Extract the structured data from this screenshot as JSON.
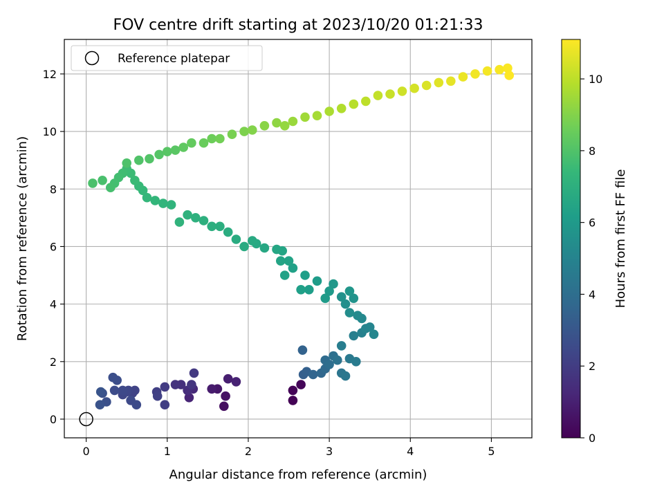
{
  "chart_data": {
    "type": "scatter",
    "title": "FOV centre drift starting at 2023/10/20 01:21:33",
    "xlabel": "Angular distance from reference (arcmin)",
    "ylabel": "Rotation from reference (arcmin)",
    "xlim": [
      -0.27,
      5.5
    ],
    "ylim": [
      -0.65,
      13.2
    ],
    "xticks": [
      0,
      1,
      2,
      3,
      4,
      5
    ],
    "yticks": [
      0,
      2,
      4,
      6,
      8,
      10,
      12
    ],
    "grid": true,
    "legend": {
      "placement": "top-left",
      "entries": [
        "Reference platepar"
      ]
    },
    "reference_point": {
      "x": 0,
      "y": 0,
      "marker": "open-circle",
      "color": "#000000"
    },
    "colorbar": {
      "label": "Hours from first FF file",
      "range": [
        0,
        11.1
      ],
      "ticks": [
        0,
        2,
        4,
        6,
        8,
        10
      ],
      "colormap": "viridis",
      "stops": [
        "#440154",
        "#482878",
        "#3e4989",
        "#31688e",
        "#26828e",
        "#1f9e89",
        "#35b779",
        "#6ece58",
        "#b5de2b",
        "#fde725"
      ]
    },
    "series": [
      {
        "points": [
          [
            2.55,
            0.65,
            0.05
          ],
          [
            2.55,
            1.0,
            0.1
          ],
          [
            2.65,
            1.2,
            0.15
          ],
          [
            1.7,
            0.45,
            0.4
          ],
          [
            1.72,
            0.8,
            0.55
          ],
          [
            1.62,
            1.05,
            0.7
          ],
          [
            1.55,
            1.05,
            0.85
          ],
          [
            1.75,
            1.4,
            0.95
          ],
          [
            1.85,
            1.3,
            1.05
          ],
          [
            1.27,
            0.75,
            1.15
          ],
          [
            1.32,
            1.05,
            1.3
          ],
          [
            1.25,
            1.0,
            1.45
          ],
          [
            1.17,
            1.2,
            1.55
          ],
          [
            1.1,
            1.2,
            1.65
          ],
          [
            1.3,
            1.2,
            1.75
          ],
          [
            1.33,
            1.6,
            1.85
          ],
          [
            0.97,
            1.12,
            1.95
          ],
          [
            0.97,
            0.5,
            2.05
          ],
          [
            0.87,
            0.95,
            2.1
          ],
          [
            0.88,
            0.8,
            2.15
          ],
          [
            0.57,
            0.9,
            2.2
          ],
          [
            0.6,
            1.0,
            2.25
          ],
          [
            0.52,
            1.0,
            2.3
          ],
          [
            0.45,
            0.85,
            2.35
          ],
          [
            0.5,
            0.95,
            2.4
          ],
          [
            0.45,
            1.0,
            2.45
          ],
          [
            0.55,
            0.65,
            2.5
          ],
          [
            0.62,
            0.5,
            2.55
          ],
          [
            0.35,
            1.0,
            2.6
          ],
          [
            0.38,
            1.35,
            2.65
          ],
          [
            0.33,
            1.45,
            2.7
          ],
          [
            0.25,
            0.6,
            2.75
          ],
          [
            0.2,
            0.9,
            2.8
          ],
          [
            0.17,
            0.5,
            2.85
          ],
          [
            0.18,
            0.95,
            2.9
          ],
          [
            2.68,
            1.55,
            3.3
          ],
          [
            2.72,
            1.65,
            3.4
          ],
          [
            2.67,
            2.4,
            3.5
          ],
          [
            2.8,
            1.55,
            3.6
          ],
          [
            2.9,
            1.6,
            3.7
          ],
          [
            2.95,
            1.75,
            3.8
          ],
          [
            2.95,
            2.05,
            3.9
          ],
          [
            3.0,
            1.9,
            4.0
          ],
          [
            3.05,
            2.2,
            4.1
          ],
          [
            3.1,
            2.05,
            4.2
          ],
          [
            3.15,
            1.6,
            4.3
          ],
          [
            3.2,
            1.5,
            4.4
          ],
          [
            3.25,
            2.1,
            4.5
          ],
          [
            3.33,
            2.0,
            4.6
          ],
          [
            3.15,
            2.55,
            4.7
          ],
          [
            3.3,
            2.9,
            4.8
          ],
          [
            3.4,
            3.0,
            4.9
          ],
          [
            3.45,
            3.15,
            5.0
          ],
          [
            3.5,
            3.2,
            5.05
          ],
          [
            3.55,
            2.95,
            5.1
          ],
          [
            3.4,
            3.5,
            5.2
          ],
          [
            3.35,
            3.6,
            5.3
          ],
          [
            3.25,
            3.7,
            5.4
          ],
          [
            3.2,
            4.0,
            5.5
          ],
          [
            3.15,
            4.25,
            5.6
          ],
          [
            3.3,
            4.2,
            5.7
          ],
          [
            3.25,
            4.45,
            5.8
          ],
          [
            3.05,
            4.7,
            5.9
          ],
          [
            3.0,
            4.45,
            6.0
          ],
          [
            2.95,
            4.2,
            6.05
          ],
          [
            2.85,
            4.8,
            6.1
          ],
          [
            2.75,
            4.5,
            6.15
          ],
          [
            2.7,
            5.0,
            6.2
          ],
          [
            2.65,
            4.5,
            6.25
          ],
          [
            2.55,
            5.25,
            6.3
          ],
          [
            2.45,
            5.0,
            6.35
          ],
          [
            2.5,
            5.5,
            6.4
          ],
          [
            2.4,
            5.5,
            6.45
          ],
          [
            2.42,
            5.85,
            6.5
          ],
          [
            2.35,
            5.9,
            6.55
          ],
          [
            2.2,
            5.95,
            6.6
          ],
          [
            2.1,
            6.1,
            6.65
          ],
          [
            2.05,
            6.2,
            6.7
          ],
          [
            1.95,
            6.0,
            6.75
          ],
          [
            1.85,
            6.25,
            6.8
          ],
          [
            1.75,
            6.5,
            6.85
          ],
          [
            1.65,
            6.7,
            6.9
          ],
          [
            1.55,
            6.7,
            6.95
          ],
          [
            1.45,
            6.9,
            7.0
          ],
          [
            1.35,
            7.0,
            7.05
          ],
          [
            1.25,
            7.1,
            7.1
          ],
          [
            1.15,
            6.85,
            7.15
          ],
          [
            1.05,
            7.45,
            7.2
          ],
          [
            0.95,
            7.5,
            7.25
          ],
          [
            0.85,
            7.6,
            7.3
          ],
          [
            0.75,
            7.7,
            7.35
          ],
          [
            0.7,
            7.95,
            7.4
          ],
          [
            0.65,
            8.1,
            7.45
          ],
          [
            0.6,
            8.3,
            7.5
          ],
          [
            0.55,
            8.55,
            7.55
          ],
          [
            0.5,
            8.7,
            7.6
          ],
          [
            0.45,
            8.55,
            7.65
          ],
          [
            0.4,
            8.4,
            7.7
          ],
          [
            0.35,
            8.2,
            7.75
          ],
          [
            0.3,
            8.05,
            7.8
          ],
          [
            0.2,
            8.3,
            7.85
          ],
          [
            0.08,
            8.2,
            7.9
          ],
          [
            0.5,
            8.9,
            7.95
          ],
          [
            0.65,
            9.0,
            8.0
          ],
          [
            0.78,
            9.05,
            8.05
          ],
          [
            0.9,
            9.2,
            8.1
          ],
          [
            1.0,
            9.3,
            8.15
          ],
          [
            1.1,
            9.35,
            8.2
          ],
          [
            1.2,
            9.45,
            8.3
          ],
          [
            1.3,
            9.6,
            8.4
          ],
          [
            1.45,
            9.6,
            8.5
          ],
          [
            1.55,
            9.75,
            8.6
          ],
          [
            1.65,
            9.75,
            8.7
          ],
          [
            1.8,
            9.9,
            8.8
          ],
          [
            1.95,
            10.0,
            8.9
          ],
          [
            2.05,
            10.05,
            9.0
          ],
          [
            2.2,
            10.2,
            9.1
          ],
          [
            2.35,
            10.3,
            9.2
          ],
          [
            2.45,
            10.2,
            9.3
          ],
          [
            2.55,
            10.35,
            9.4
          ],
          [
            2.7,
            10.5,
            9.5
          ],
          [
            2.85,
            10.55,
            9.6
          ],
          [
            3.0,
            10.7,
            9.7
          ],
          [
            3.15,
            10.8,
            9.8
          ],
          [
            3.3,
            10.95,
            9.9
          ],
          [
            3.45,
            11.05,
            10.0
          ],
          [
            3.6,
            11.25,
            10.1
          ],
          [
            3.75,
            11.3,
            10.2
          ],
          [
            3.9,
            11.4,
            10.3
          ],
          [
            4.05,
            11.5,
            10.4
          ],
          [
            4.2,
            11.6,
            10.5
          ],
          [
            4.35,
            11.7,
            10.6
          ],
          [
            4.5,
            11.75,
            10.7
          ],
          [
            4.65,
            11.9,
            10.8
          ],
          [
            4.8,
            12.0,
            10.9
          ],
          [
            4.95,
            12.1,
            10.95
          ],
          [
            5.1,
            12.15,
            11.0
          ],
          [
            5.2,
            12.2,
            11.05
          ],
          [
            5.22,
            11.95,
            11.1
          ]
        ]
      }
    ]
  }
}
